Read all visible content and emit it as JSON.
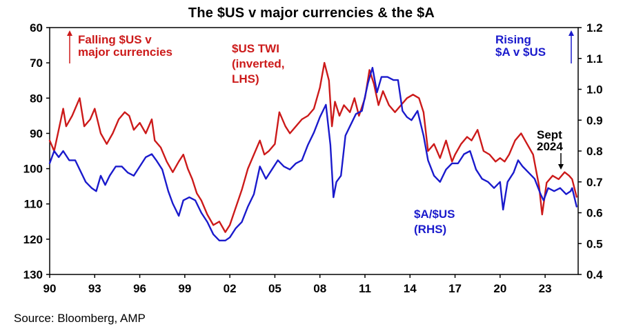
{
  "chart_data": {
    "type": "line",
    "title": "The $US v major currencies & the $A",
    "source": "Source: Bloomberg, AMP",
    "x_ticks": [
      "90",
      "93",
      "96",
      "99",
      "02",
      "05",
      "08",
      "11",
      "14",
      "17",
      "20",
      "23"
    ],
    "x_range": [
      1990,
      2025.2
    ],
    "left_axis": {
      "ticks": [
        "60",
        "70",
        "80",
        "90",
        "100",
        "110",
        "120",
        "130"
      ],
      "range": [
        60,
        130
      ],
      "inverted": true
    },
    "right_axis": {
      "ticks": [
        "1.2",
        "1.1",
        "1.0",
        "0.9",
        "0.8",
        "0.7",
        "0.6",
        "0.5",
        "0.4"
      ],
      "range": [
        0.4,
        1.2
      ]
    },
    "colors": {
      "twi": "#cc1a1a",
      "audusd": "#1a1acc",
      "axis": "#000000"
    },
    "annotations": {
      "falling_line1": "Falling $US v",
      "falling_line2": "major currencies",
      "twi_line1": "$US TWI",
      "twi_line2": "(inverted,",
      "twi_line3": "LHS)",
      "rising_line1": "Rising",
      "rising_line2": "$A v $US",
      "aud_line1": "$A/$US",
      "aud_line2": "(RHS)",
      "sept_line1": "Sept",
      "sept_line2": "2024"
    },
    "series": [
      {
        "name": "$US TWI (inverted, LHS)",
        "axis": "left",
        "color": "#cc1a1a",
        "x": [
          1990.0,
          1990.3,
          1990.6,
          1990.9,
          1991.1,
          1991.5,
          1992.0,
          1992.3,
          1992.7,
          1993.0,
          1993.4,
          1993.8,
          1994.2,
          1994.6,
          1995.0,
          1995.3,
          1995.6,
          1996.0,
          1996.4,
          1996.8,
          1997.0,
          1997.4,
          1997.8,
          1998.2,
          1998.6,
          1998.9,
          1999.2,
          1999.5,
          1999.8,
          2000.1,
          2000.5,
          2000.9,
          2001.3,
          2001.7,
          2002.0,
          2002.4,
          2002.8,
          2003.2,
          2003.6,
          2004.0,
          2004.3,
          2004.6,
          2005.0,
          2005.3,
          2005.7,
          2006.0,
          2006.4,
          2006.8,
          2007.2,
          2007.6,
          2008.0,
          2008.3,
          2008.6,
          2008.8,
          2009.0,
          2009.3,
          2009.6,
          2010.0,
          2010.3,
          2010.6,
          2011.0,
          2011.3,
          2011.6,
          2011.9,
          2012.2,
          2012.6,
          2013.0,
          2013.4,
          2013.8,
          2014.2,
          2014.6,
          2014.9,
          2015.2,
          2015.6,
          2016.0,
          2016.4,
          2016.8,
          2017.0,
          2017.4,
          2017.8,
          2018.1,
          2018.5,
          2018.9,
          2019.3,
          2019.7,
          2020.0,
          2020.3,
          2020.6,
          2021.0,
          2021.4,
          2021.8,
          2022.2,
          2022.6,
          2022.8,
          2023.1,
          2023.5,
          2023.9,
          2024.3,
          2024.6,
          2024.8,
          2025.1
        ],
        "values": [
          92,
          95,
          89,
          83,
          88,
          85,
          80,
          88,
          86,
          83,
          90,
          93,
          90,
          86,
          84,
          85,
          89,
          87,
          90,
          86,
          92,
          94,
          98,
          101,
          98,
          96,
          100,
          103,
          107,
          109,
          113,
          116,
          115,
          118,
          116,
          111,
          106,
          100,
          96,
          92,
          96,
          95,
          93,
          84,
          88,
          90,
          88,
          86,
          85,
          83,
          77,
          70,
          75,
          88,
          81,
          85,
          82,
          84,
          80,
          85,
          80,
          72,
          76,
          82,
          78,
          82,
          84,
          82,
          80,
          79,
          80,
          84,
          95,
          93,
          97,
          92,
          98,
          96,
          93,
          91,
          92,
          89,
          95,
          96,
          98,
          97,
          98,
          96,
          92,
          90,
          93,
          96,
          105,
          113,
          104,
          102,
          103,
          101,
          102,
          103,
          108
        ]
      },
      {
        "name": "$A/$US (RHS)",
        "axis": "right",
        "color": "#1a1acc",
        "x": [
          1990.0,
          1990.3,
          1990.6,
          1990.9,
          1991.3,
          1991.7,
          1992.0,
          1992.4,
          1992.8,
          1993.1,
          1993.4,
          1993.7,
          1994.0,
          1994.4,
          1994.8,
          1995.2,
          1995.6,
          1996.0,
          1996.4,
          1996.8,
          1997.1,
          1997.5,
          1997.9,
          1998.2,
          1998.6,
          1998.9,
          1999.3,
          1999.7,
          2000.1,
          2000.5,
          2000.9,
          2001.3,
          2001.7,
          2002.0,
          2002.4,
          2002.8,
          2003.2,
          2003.6,
          2004.0,
          2004.4,
          2004.8,
          2005.2,
          2005.6,
          2006.0,
          2006.4,
          2006.8,
          2007.2,
          2007.6,
          2008.0,
          2008.4,
          2008.7,
          2008.9,
          2009.1,
          2009.4,
          2009.7,
          2010.0,
          2010.4,
          2010.8,
          2011.2,
          2011.5,
          2011.8,
          2012.1,
          2012.5,
          2012.9,
          2013.2,
          2013.5,
          2013.8,
          2014.1,
          2014.5,
          2014.9,
          2015.2,
          2015.6,
          2016.0,
          2016.4,
          2016.8,
          2017.2,
          2017.6,
          2018.0,
          2018.4,
          2018.8,
          2019.2,
          2019.6,
          2020.0,
          2020.2,
          2020.5,
          2020.9,
          2021.2,
          2021.5,
          2021.9,
          2022.3,
          2022.7,
          2022.9,
          2023.2,
          2023.6,
          2024.0,
          2024.4,
          2024.7,
          2024.8,
          2025.1
        ],
        "values": [
          0.76,
          0.8,
          0.78,
          0.8,
          0.77,
          0.77,
          0.74,
          0.7,
          0.68,
          0.67,
          0.72,
          0.69,
          0.72,
          0.75,
          0.75,
          0.73,
          0.72,
          0.75,
          0.78,
          0.79,
          0.77,
          0.74,
          0.67,
          0.63,
          0.59,
          0.64,
          0.65,
          0.64,
          0.6,
          0.57,
          0.53,
          0.51,
          0.51,
          0.52,
          0.55,
          0.57,
          0.62,
          0.66,
          0.75,
          0.71,
          0.74,
          0.77,
          0.75,
          0.74,
          0.76,
          0.77,
          0.82,
          0.86,
          0.91,
          0.95,
          0.82,
          0.65,
          0.7,
          0.72,
          0.85,
          0.88,
          0.92,
          0.93,
          1.02,
          1.07,
          0.99,
          1.04,
          1.04,
          1.03,
          1.03,
          0.93,
          0.91,
          0.9,
          0.93,
          0.85,
          0.77,
          0.72,
          0.7,
          0.74,
          0.76,
          0.76,
          0.79,
          0.8,
          0.74,
          0.71,
          0.7,
          0.68,
          0.7,
          0.61,
          0.7,
          0.73,
          0.77,
          0.75,
          0.73,
          0.71,
          0.66,
          0.64,
          0.68,
          0.67,
          0.68,
          0.66,
          0.67,
          0.68,
          0.62
        ]
      }
    ]
  }
}
